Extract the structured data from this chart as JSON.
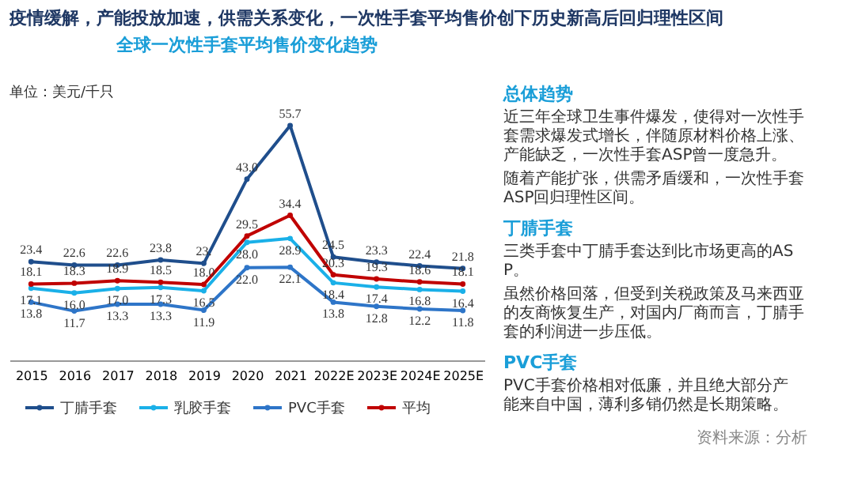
{
  "chart_data": [
    {
      "type": "line",
      "title": "疫情缓解，产能投放加速，供需关系变化，一次性手套平均售价创下历史新高后回归理性区间",
      "subtitle": "全球一次性手套平均售价变化趋势",
      "ylabel": "单位：美元/千只",
      "categories": [
        "2015",
        "2016",
        "2017",
        "2018",
        "2019",
        "2020",
        "2021",
        "2022E",
        "2023E",
        "2024E",
        "2025E"
      ],
      "series": [
        {
          "name": "丁腈手套",
          "color": "#1f4e8c",
          "values": [
            23.4,
            22.6,
            22.6,
            23.8,
            23.0,
            43.0,
            55.7,
            24.5,
            23.3,
            22.4,
            21.8
          ],
          "value_labels": [
            "23.4",
            "22.6",
            "22.6",
            "23.8",
            "23.",
            "43.0",
            "55.7",
            "24.5",
            "23.3",
            "22.4",
            "21.8"
          ]
        },
        {
          "name": "乳胶手套",
          "color": "#1ab0e8",
          "values": [
            17.1,
            16.0,
            17.0,
            17.3,
            16.5,
            28.0,
            28.9,
            18.4,
            17.4,
            16.8,
            16.4
          ],
          "value_labels": [
            "17.1",
            "16.0",
            "17.0",
            "17.3",
            "16.5",
            "28.0",
            "28.9",
            "18.4",
            "17.4",
            "16.8",
            "16.4"
          ]
        },
        {
          "name": "PVC手套",
          "color": "#2e75c8",
          "values": [
            13.8,
            11.7,
            13.3,
            13.3,
            11.9,
            22.0,
            22.1,
            13.8,
            12.8,
            12.2,
            11.8
          ],
          "value_labels": [
            "13.8",
            "11.7",
            "13.3",
            "13.3",
            "11.9",
            "22.0",
            "22.1",
            "13.8",
            "12.8",
            "12.2",
            "11.8"
          ]
        },
        {
          "name": "平均",
          "color": "#c00000",
          "values": [
            18.1,
            18.3,
            18.9,
            18.5,
            18.0,
            29.5,
            34.4,
            20.3,
            19.3,
            18.6,
            18.1
          ],
          "value_labels": [
            "18.1",
            "18.3",
            "18.9",
            "18.5",
            "18.0",
            "29.5",
            "34.4",
            "20.3",
            "19.3",
            "18.6",
            "18.1"
          ]
        }
      ],
      "marker": "circle",
      "legend": "bottom",
      "tick_labels": "x"
    },
    {
      "type": "other",
      "title": "总体趋势",
      "annotations": [
        "近三年全球卫生事件爆发，使得对一次性手套需求爆发式增长，伴随原材料价格上涨、产能缺乏，一次性手套ASP曾一度急升。",
        "随着产能扩张，供需矛盾缓和，一次性手套ASP回归理性区间。"
      ]
    },
    {
      "type": "other",
      "title": "丁腈手套",
      "annotations": [
        "三类手套中丁腈手套达到比市场更高的ASP。",
        "虽然价格回落，但受到关税政策及马来西亚的友商恢复生产，对国内厂商而言，丁腈手套的利润进一步压低。"
      ]
    },
    {
      "type": "other",
      "title": "PVC手套",
      "annotations": [
        "PVC手套价格相对低廉，并且绝大部分产能来自中国，薄利多销仍然是长期策略。",
        "资料来源：分析"
      ]
    }
  ]
}
